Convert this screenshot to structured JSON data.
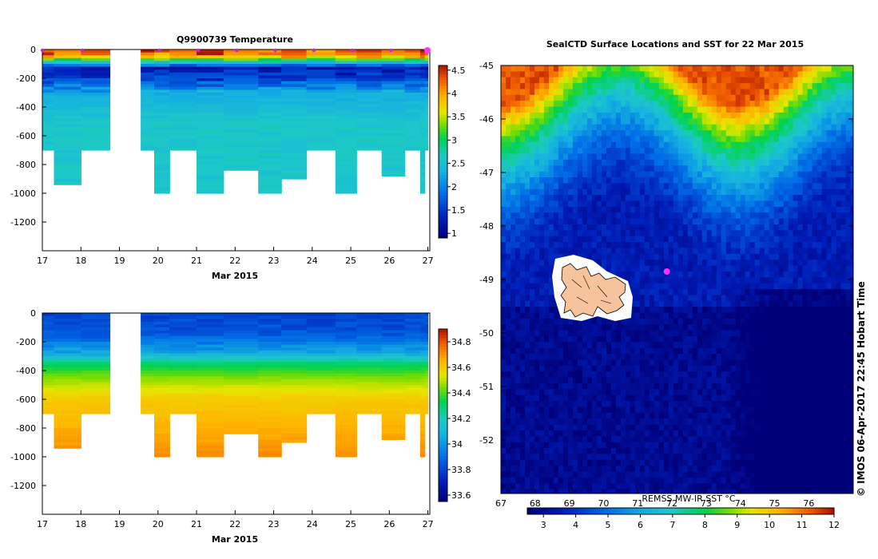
{
  "credit": "© IMOS 06-Apr-2017 22:45 Hobart Time",
  "chart_data": [
    {
      "type": "heatmap",
      "title": "Q9900739  Temperature",
      "xlabel": "Mar 2015",
      "x_ticks": [
        "17",
        "18",
        "19",
        "20",
        "21",
        "22",
        "23",
        "24",
        "25",
        "26",
        "27"
      ],
      "x_range": [
        17,
        27.05
      ],
      "y_ticks": [
        "0",
        "-200",
        "-400",
        "-600",
        "-800",
        "-1000",
        "-1200"
      ],
      "y_range": [
        -1400,
        0
      ],
      "colorbar_ticks": [
        "1",
        "1.5",
        "2",
        "2.5",
        "3",
        "3.5",
        "4",
        "4.5"
      ],
      "colorbar_range": [
        0.9,
        4.6
      ],
      "profile_times": [
        17.0,
        18.0,
        20.0,
        21.0,
        22.0,
        23.0,
        24.0,
        25.0,
        26.0,
        27.0
      ],
      "gap": [
        18.75,
        19.55
      ],
      "columns": [
        {
          "start": 17.0,
          "end": 17.3,
          "max_depth": 700
        },
        {
          "start": 17.3,
          "end": 18.0,
          "max_depth": 925
        },
        {
          "start": 18.0,
          "end": 18.75,
          "max_depth": 700
        },
        {
          "start": 19.55,
          "end": 19.9,
          "max_depth": 700
        },
        {
          "start": 19.9,
          "end": 20.3,
          "max_depth": 1000
        },
        {
          "start": 20.3,
          "end": 21.0,
          "max_depth": 700
        },
        {
          "start": 21.0,
          "end": 21.7,
          "max_depth": 1000
        },
        {
          "start": 21.7,
          "end": 22.6,
          "max_depth": 825
        },
        {
          "start": 22.6,
          "end": 23.2,
          "max_depth": 1000
        },
        {
          "start": 23.2,
          "end": 23.85,
          "max_depth": 890
        },
        {
          "start": 23.85,
          "end": 24.6,
          "max_depth": 700
        },
        {
          "start": 24.6,
          "end": 25.15,
          "max_depth": 1000
        },
        {
          "start": 25.15,
          "end": 25.8,
          "max_depth": 700
        },
        {
          "start": 25.8,
          "end": 26.4,
          "max_depth": 865
        },
        {
          "start": 26.4,
          "end": 26.8,
          "max_depth": 700
        },
        {
          "start": 26.8,
          "end": 26.92,
          "max_depth": 1000
        },
        {
          "start": 26.92,
          "end": 27.0,
          "max_depth": 700
        }
      ],
      "profile": [
        [
          0,
          4.3
        ],
        [
          40,
          4.0
        ],
        [
          80,
          2.9
        ],
        [
          130,
          1.3
        ],
        [
          210,
          1.6
        ],
        [
          300,
          2.3
        ],
        [
          500,
          2.6
        ],
        [
          1000,
          2.6
        ]
      ]
    },
    {
      "type": "heatmap",
      "title": "",
      "xlabel": "Mar 2015",
      "x_ticks": [
        "17",
        "18",
        "19",
        "20",
        "21",
        "22",
        "23",
        "24",
        "25",
        "26",
        "27"
      ],
      "x_range": [
        17,
        27.05
      ],
      "y_ticks": [
        "0",
        "-200",
        "-400",
        "-600",
        "-800",
        "-1000",
        "-1200"
      ],
      "y_range": [
        -1400,
        0
      ],
      "colorbar_ticks": [
        "33.6",
        "33.8",
        "34",
        "34.2",
        "34.4",
        "34.6",
        "34.8"
      ],
      "colorbar_range": [
        33.55,
        34.9
      ],
      "gap": [
        18.75,
        19.55
      ],
      "profile": [
        [
          0,
          33.8
        ],
        [
          150,
          33.85
        ],
        [
          280,
          34.05
        ],
        [
          350,
          34.3
        ],
        [
          450,
          34.45
        ],
        [
          600,
          34.6
        ],
        [
          1000,
          34.72
        ]
      ]
    },
    {
      "type": "heatmap",
      "title": "SealCTD Surface Locations and SST for 22 Mar 2015",
      "x_ticks": [
        "67",
        "68",
        "69",
        "70",
        "71",
        "72",
        "73",
        "74",
        "75",
        "76"
      ],
      "x_range": [
        67,
        77.3
      ],
      "y_ticks": [
        "-45",
        "-46",
        "-47",
        "-48",
        "-49",
        "-50",
        "-51",
        "-52"
      ],
      "y_range": [
        -53,
        -45
      ],
      "colorbar_label": "REMSS MW-IR SST °C",
      "colorbar_ticks": [
        "3",
        "4",
        "5",
        "6",
        "7",
        "8",
        "9",
        "10",
        "11",
        "12"
      ],
      "colorbar_range": [
        2.5,
        12.0
      ],
      "marker": {
        "lon": 71.85,
        "lat": -48.85
      }
    }
  ]
}
